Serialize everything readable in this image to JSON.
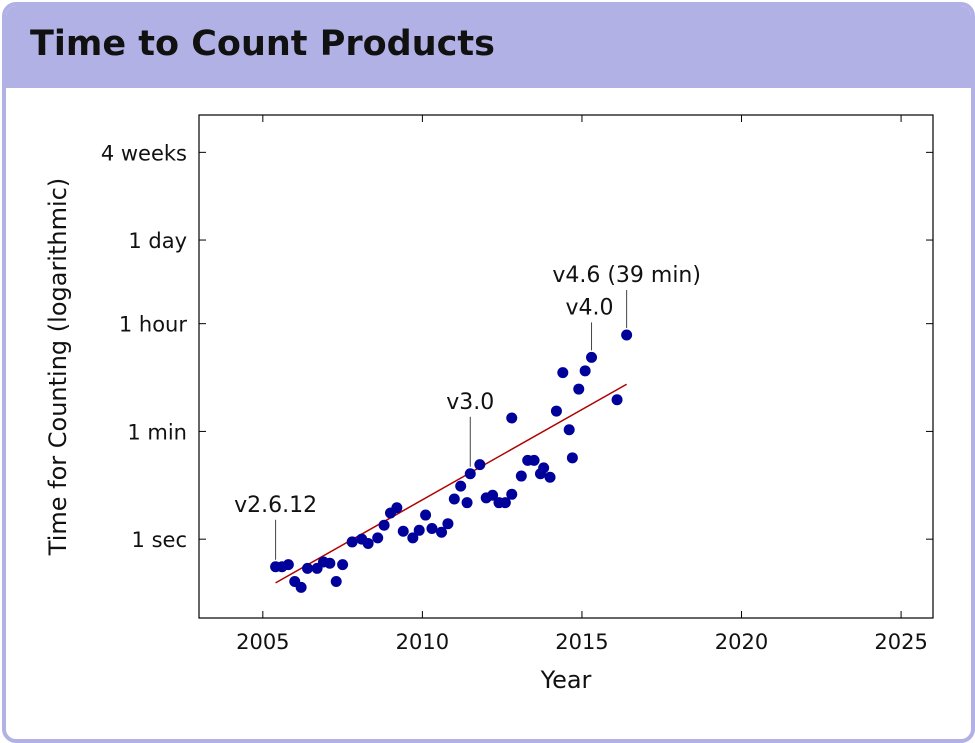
{
  "header": {
    "title": "Time to Count Products"
  },
  "colors": {
    "frame": "#b1b1e6",
    "points": "#00009a",
    "trend": "#b20000"
  },
  "chart_data": {
    "type": "scatter",
    "xlabel": "Year",
    "ylabel": "Time for Counting (logarithmic)",
    "xlim": [
      2003,
      2026
    ],
    "x_ticks": [
      2005,
      2010,
      2015,
      2020,
      2025
    ],
    "y_scale": "log",
    "y_unit": "seconds",
    "ylim": [
      0.05,
      10000000
    ],
    "y_ticks": [
      {
        "value": 1,
        "label": "1 sec"
      },
      {
        "value": 60,
        "label": "1 min"
      },
      {
        "value": 3600,
        "label": "1 hour"
      },
      {
        "value": 86400,
        "label": "1 day"
      },
      {
        "value": 2419200,
        "label": "4 weeks"
      }
    ],
    "points": [
      [
        2005.4,
        0.35
      ],
      [
        2005.6,
        0.35
      ],
      [
        2005.8,
        0.38
      ],
      [
        2006.0,
        0.2
      ],
      [
        2006.2,
        0.16
      ],
      [
        2006.4,
        0.33
      ],
      [
        2006.7,
        0.33
      ],
      [
        2006.9,
        0.42
      ],
      [
        2007.1,
        0.4
      ],
      [
        2007.3,
        0.2
      ],
      [
        2007.5,
        0.38
      ],
      [
        2007.8,
        0.9
      ],
      [
        2008.1,
        1.0
      ],
      [
        2008.3,
        0.85
      ],
      [
        2008.6,
        1.05
      ],
      [
        2008.8,
        1.7
      ],
      [
        2009.0,
        2.7
      ],
      [
        2009.2,
        3.3
      ],
      [
        2009.4,
        1.35
      ],
      [
        2009.7,
        1.05
      ],
      [
        2009.9,
        1.4
      ],
      [
        2010.1,
        2.5
      ],
      [
        2010.3,
        1.5
      ],
      [
        2010.6,
        1.3
      ],
      [
        2010.8,
        1.8
      ],
      [
        2011.0,
        4.6
      ],
      [
        2011.2,
        7.5
      ],
      [
        2011.4,
        4.0
      ],
      [
        2011.5,
        12.0
      ],
      [
        2011.8,
        17.0
      ],
      [
        2012.0,
        4.8
      ],
      [
        2012.2,
        5.3
      ],
      [
        2012.4,
        4.0
      ],
      [
        2012.6,
        4.0
      ],
      [
        2012.8,
        5.5
      ],
      [
        2012.8,
        100.0
      ],
      [
        2013.1,
        11.0
      ],
      [
        2013.3,
        20.0
      ],
      [
        2013.5,
        20.0
      ],
      [
        2013.7,
        12.0
      ],
      [
        2013.8,
        15.0
      ],
      [
        2014.0,
        10.5
      ],
      [
        2014.2,
        130.0
      ],
      [
        2014.4,
        560.0
      ],
      [
        2014.6,
        64.0
      ],
      [
        2014.7,
        22.0
      ],
      [
        2014.9,
        300.0
      ],
      [
        2015.1,
        600.0
      ],
      [
        2015.3,
        1000.0
      ],
      [
        2016.1,
        200.0
      ],
      [
        2016.4,
        2340.0
      ]
    ],
    "trend_line": {
      "from": [
        2005.4,
        0.19
      ],
      "to": [
        2016.4,
        360.0
      ]
    },
    "annotations": [
      {
        "label": "v2.6.12",
        "x": 2005.4,
        "y": 0.35
      },
      {
        "label": "v3.0",
        "x": 2011.5,
        "y": 12.0
      },
      {
        "label": "v4.0",
        "x": 2015.3,
        "y": 1000.0
      },
      {
        "label": "v4.6 (39 min)",
        "x": 2016.4,
        "y": 2340.0
      }
    ]
  }
}
